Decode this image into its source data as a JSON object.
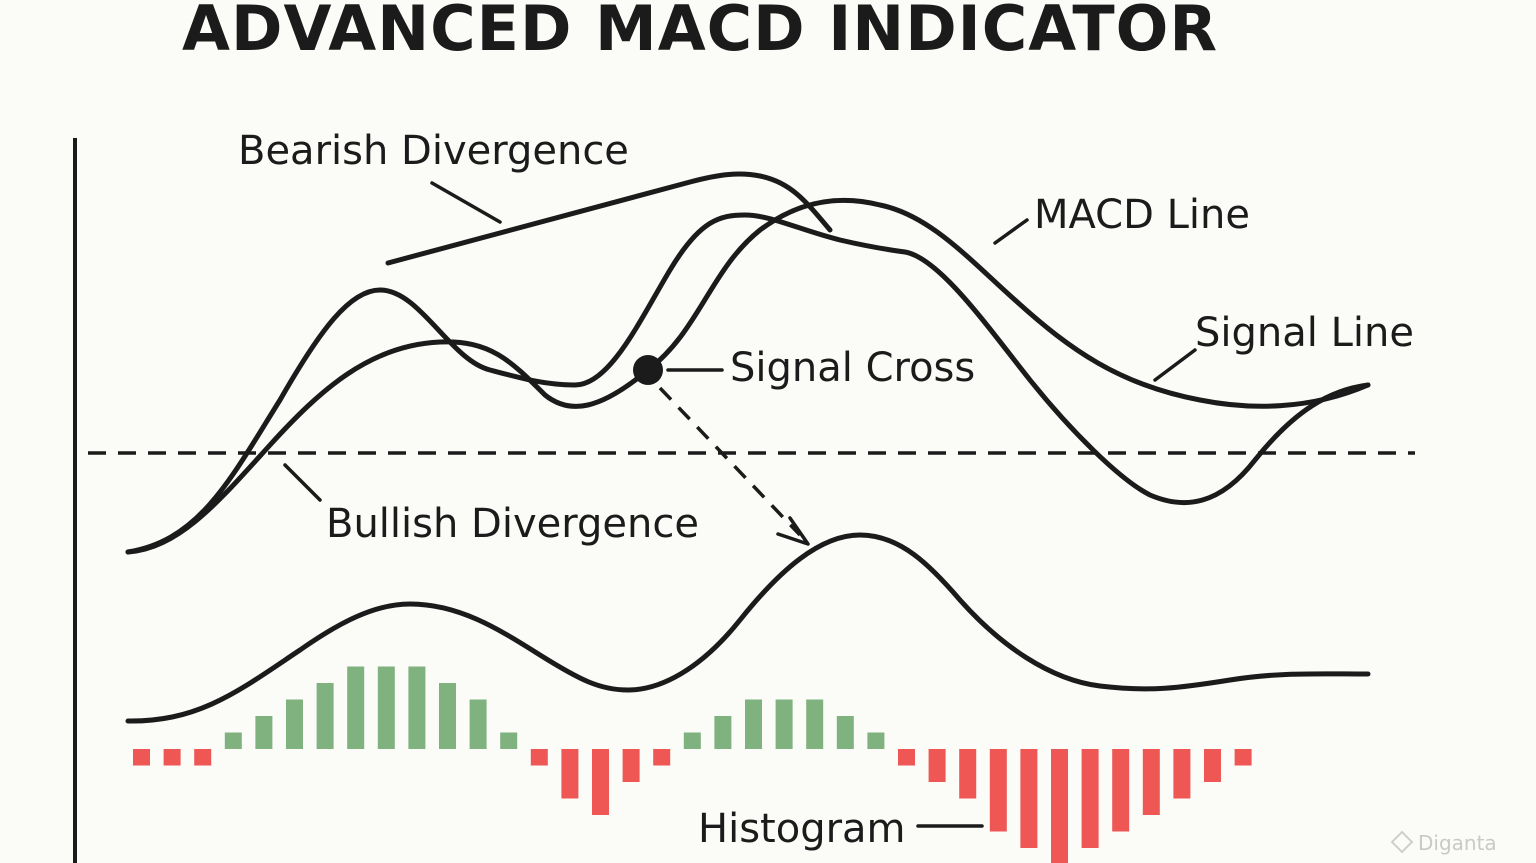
{
  "title": "ADVANCED MACD INDICATOR",
  "labels": {
    "bearish_divergence": "Bearish Divergence",
    "macd_line": "MACD Line",
    "signal_line": "Signal Line",
    "signal_cross": "Signal Cross",
    "bullish_divergence": "Bullish Divergence",
    "histogram": "Histogram"
  },
  "watermark": "Diganta",
  "colors": {
    "line": "#1b1b1b",
    "histogram_positive": "#7fb27f",
    "histogram_negative": "#ee5753",
    "background": "#fbfbf8"
  },
  "histogram_bars": [
    -1,
    -1,
    -1,
    1,
    2,
    3,
    4,
    5,
    5,
    5,
    4,
    3,
    1,
    -1,
    -3,
    -4,
    -2,
    -1,
    1,
    2,
    3,
    3,
    3,
    2,
    1,
    -1,
    -2,
    -3,
    -5,
    -6,
    -7,
    -6,
    -5,
    -4,
    -3,
    -2,
    -1
  ]
}
